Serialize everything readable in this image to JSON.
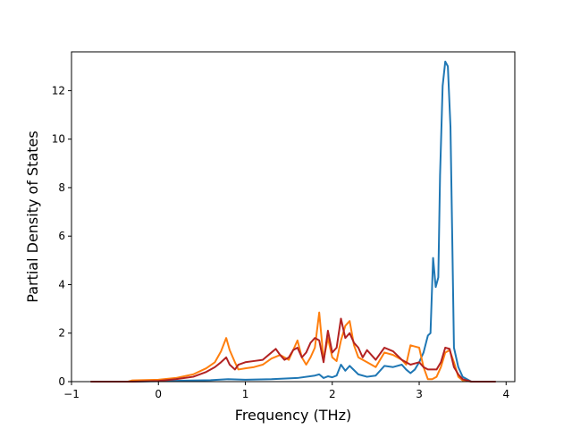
{
  "chart_data": {
    "type": "line",
    "title": "",
    "xlabel": "Frequency (THz)",
    "ylabel": "Partial Density of States",
    "xlim": [
      -1.0,
      4.1
    ],
    "ylim": [
      0,
      13.6
    ],
    "xticks": [
      -1,
      0,
      1,
      2,
      3,
      4
    ],
    "yticks": [
      0,
      2,
      4,
      6,
      8,
      10,
      12
    ],
    "grid": false,
    "legend": "none",
    "series": [
      {
        "color": "#1f77b4",
        "x": [
          -0.78,
          -0.3,
          0.0,
          0.3,
          0.6,
          0.8,
          1.0,
          1.3,
          1.6,
          1.8,
          1.85,
          1.9,
          1.95,
          2.0,
          2.05,
          2.1,
          2.15,
          2.2,
          2.3,
          2.4,
          2.5,
          2.6,
          2.7,
          2.8,
          2.85,
          2.9,
          2.95,
          3.0,
          3.05,
          3.1,
          3.13,
          3.16,
          3.19,
          3.22,
          3.24,
          3.27,
          3.3,
          3.33,
          3.36,
          3.38,
          3.4,
          3.45,
          3.5,
          3.6,
          3.88
        ],
        "y": [
          0.0,
          0.0,
          0.02,
          0.04,
          0.06,
          0.1,
          0.08,
          0.1,
          0.15,
          0.25,
          0.3,
          0.15,
          0.22,
          0.18,
          0.25,
          0.7,
          0.45,
          0.65,
          0.3,
          0.2,
          0.25,
          0.65,
          0.6,
          0.7,
          0.5,
          0.35,
          0.5,
          0.8,
          1.2,
          1.9,
          2.0,
          5.1,
          3.9,
          4.3,
          8.5,
          12.2,
          13.2,
          13.0,
          10.5,
          6.0,
          1.4,
          0.6,
          0.2,
          0.0,
          0.0
        ]
      },
      {
        "color": "#ff7f0e",
        "x": [
          -0.78,
          -0.35,
          -0.3,
          0.0,
          0.2,
          0.4,
          0.55,
          0.65,
          0.72,
          0.78,
          0.82,
          0.88,
          0.92,
          1.0,
          1.1,
          1.2,
          1.3,
          1.4,
          1.5,
          1.55,
          1.6,
          1.65,
          1.7,
          1.75,
          1.8,
          1.85,
          1.9,
          1.95,
          2.0,
          2.05,
          2.1,
          2.15,
          2.2,
          2.25,
          2.3,
          2.4,
          2.5,
          2.6,
          2.7,
          2.8,
          2.85,
          2.9,
          2.95,
          3.0,
          3.05,
          3.1,
          3.15,
          3.2,
          3.25,
          3.3,
          3.35,
          3.4,
          3.45,
          3.5,
          3.6,
          3.88
        ],
        "y": [
          0.0,
          0.0,
          0.05,
          0.08,
          0.15,
          0.3,
          0.55,
          0.8,
          1.25,
          1.8,
          1.3,
          0.8,
          0.5,
          0.55,
          0.6,
          0.7,
          0.95,
          1.1,
          0.9,
          1.3,
          1.7,
          1.0,
          0.7,
          1.0,
          1.4,
          2.85,
          0.9,
          1.8,
          1.0,
          0.85,
          1.7,
          2.3,
          2.5,
          1.5,
          1.0,
          0.8,
          0.6,
          1.2,
          1.1,
          0.9,
          0.7,
          1.5,
          1.45,
          1.4,
          0.6,
          0.1,
          0.1,
          0.2,
          0.6,
          1.2,
          1.3,
          0.8,
          0.2,
          0.05,
          0.0,
          0.0
        ]
      },
      {
        "color": "#b22222",
        "x": [
          -0.78,
          -0.3,
          0.0,
          0.2,
          0.4,
          0.55,
          0.65,
          0.72,
          0.78,
          0.82,
          0.88,
          0.92,
          1.0,
          1.1,
          1.2,
          1.3,
          1.35,
          1.4,
          1.45,
          1.5,
          1.55,
          1.6,
          1.65,
          1.7,
          1.75,
          1.8,
          1.85,
          1.9,
          1.95,
          2.0,
          2.05,
          2.1,
          2.15,
          2.2,
          2.25,
          2.3,
          2.35,
          2.4,
          2.5,
          2.6,
          2.7,
          2.8,
          2.9,
          3.0,
          3.05,
          3.1,
          3.2,
          3.25,
          3.3,
          3.35,
          3.4,
          3.45,
          3.5,
          3.6,
          3.88
        ],
        "y": [
          0.0,
          0.0,
          0.03,
          0.1,
          0.2,
          0.4,
          0.6,
          0.8,
          1.0,
          0.7,
          0.5,
          0.7,
          0.8,
          0.85,
          0.9,
          1.2,
          1.35,
          1.1,
          0.9,
          1.0,
          1.3,
          1.4,
          1.0,
          1.2,
          1.6,
          1.8,
          1.7,
          0.8,
          2.1,
          1.2,
          1.4,
          2.6,
          1.8,
          2.0,
          1.6,
          1.4,
          1.0,
          1.3,
          0.9,
          1.4,
          1.25,
          0.9,
          0.7,
          0.8,
          0.6,
          0.5,
          0.5,
          0.8,
          1.4,
          1.35,
          0.6,
          0.3,
          0.1,
          0.0,
          0.0
        ]
      }
    ]
  }
}
